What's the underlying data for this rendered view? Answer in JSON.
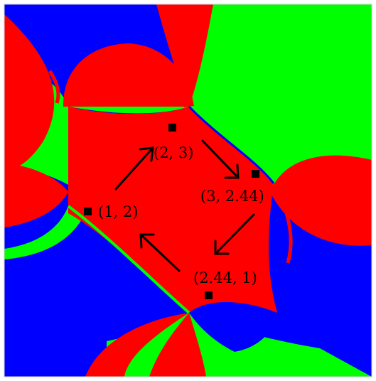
{
  "colors": {
    "red": "#ff0000",
    "green": "#00ff00",
    "blue": "#0000ff",
    "point": "#000000",
    "background": "#ffffff"
  },
  "points": [
    {
      "id": "p12",
      "label": "(1, 2)"
    },
    {
      "id": "p23",
      "label": "(2, 3)"
    },
    {
      "id": "p3244",
      "label": "(3, 2.44)"
    },
    {
      "id": "p2441",
      "label": "(2.44, 1)"
    }
  ],
  "cycle": [
    "(1, 2)",
    "(2, 3)",
    "(3, 2.44)",
    "(2.44, 1)"
  ]
}
